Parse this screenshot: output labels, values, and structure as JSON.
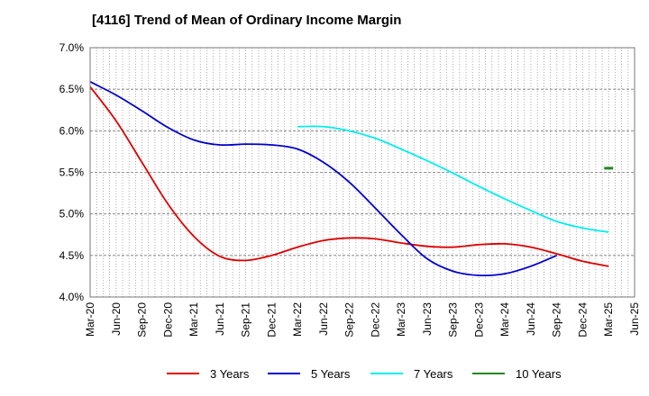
{
  "chart_data": {
    "type": "line",
    "title": "[4116]  Trend of Mean of Ordinary Income Margin",
    "xlabel": "",
    "ylabel": "",
    "ylim": [
      4.0,
      7.0
    ],
    "y_ticks": [
      "4.0%",
      "4.5%",
      "5.0%",
      "5.5%",
      "6.0%",
      "6.5%",
      "7.0%"
    ],
    "y_tick_values": [
      4.0,
      4.5,
      5.0,
      5.5,
      6.0,
      6.5,
      7.0
    ],
    "categories": [
      "Mar-20",
      "Jun-20",
      "Sep-20",
      "Dec-20",
      "Mar-21",
      "Jun-21",
      "Sep-21",
      "Dec-21",
      "Mar-22",
      "Jun-22",
      "Sep-22",
      "Dec-22",
      "Mar-23",
      "Jun-23",
      "Sep-23",
      "Dec-23",
      "Mar-24",
      "Jun-24",
      "Sep-24",
      "Dec-24",
      "Mar-25",
      "Jun-25"
    ],
    "grid": true,
    "legend_position": "bottom",
    "series": [
      {
        "name": "3 Years",
        "color": "#dd0000",
        "values": [
          6.53,
          6.12,
          5.62,
          5.12,
          4.73,
          4.49,
          4.44,
          4.5,
          4.6,
          4.68,
          4.71,
          4.7,
          4.65,
          4.61,
          4.6,
          4.63,
          4.64,
          4.6,
          4.52,
          4.43,
          4.37,
          null
        ]
      },
      {
        "name": "5 Years",
        "color": "#0000cc",
        "values": [
          6.59,
          6.43,
          6.24,
          6.04,
          5.89,
          5.83,
          5.84,
          5.83,
          5.78,
          5.62,
          5.38,
          5.07,
          4.75,
          4.46,
          4.31,
          4.26,
          4.28,
          4.37,
          4.5,
          null,
          null,
          null
        ]
      },
      {
        "name": "7 Years",
        "color": "#00eeee",
        "values": [
          null,
          null,
          null,
          null,
          null,
          null,
          null,
          null,
          6.05,
          6.05,
          6.0,
          5.91,
          5.78,
          5.64,
          5.49,
          5.33,
          5.18,
          5.04,
          4.91,
          4.83,
          4.78,
          null
        ]
      },
      {
        "name": "10 Years",
        "color": "#228822",
        "values": [
          null,
          null,
          null,
          null,
          null,
          null,
          null,
          null,
          null,
          null,
          null,
          null,
          null,
          null,
          null,
          null,
          null,
          null,
          null,
          null,
          5.55,
          null
        ]
      }
    ]
  }
}
